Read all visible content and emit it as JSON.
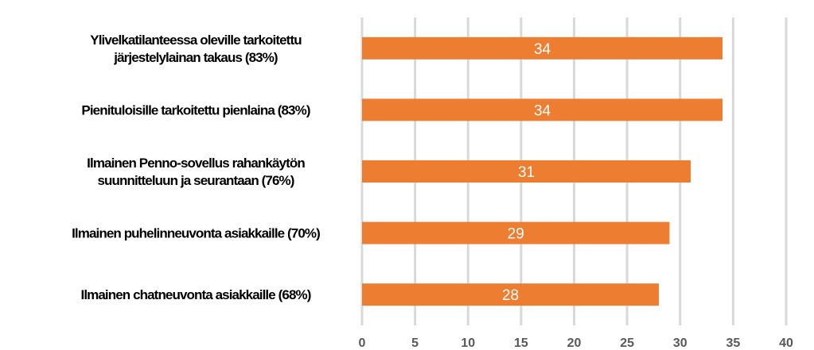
{
  "chart_data": {
    "type": "bar",
    "orientation": "horizontal",
    "categories": [
      [
        "Ylivelkatilanteessa oleville tarkoitettu",
        "järjestelylainan takaus (83%)"
      ],
      [
        "Pienituloisille tarkoitettu pienlaina (83%)"
      ],
      [
        "Ilmainen Penno-sovellus rahankäytön",
        "suunnitteluun ja seurantaan  (76%)"
      ],
      [
        "Ilmainen puhelinneuvonta asiakkaille (70%)"
      ],
      [
        "Ilmainen chatneuvonta asiakkaille (68%)"
      ]
    ],
    "values": [
      34,
      34,
      31,
      29,
      28
    ],
    "data_labels": [
      "34",
      "34",
      "31",
      "29",
      "28"
    ],
    "xlim": [
      0,
      40
    ],
    "xticks": [
      "0",
      "5",
      "10",
      "15",
      "20",
      "25",
      "30",
      "35",
      "40"
    ],
    "grid": "vertical",
    "legend": "none",
    "title": "",
    "xlabel": "",
    "ylabel": "",
    "bar_color": "#ED7D31",
    "grid_color": "#D9D9D9"
  }
}
